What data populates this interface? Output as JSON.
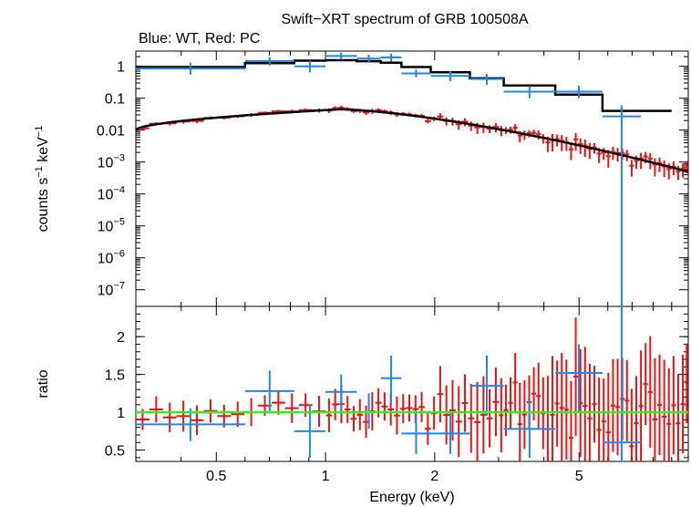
{
  "chart_data": {
    "type": "scatter",
    "title": "Swift−XRT spectrum of GRB 100508A",
    "subtitle": "Blue: WT, Red: PC",
    "xlabel": "Energy (keV)",
    "x_scale": "log",
    "xlim": [
      0.3,
      10
    ],
    "x_ticks": [
      {
        "value": 0.5,
        "label": "0.5"
      },
      {
        "value": 1,
        "label": "1"
      },
      {
        "value": 2,
        "label": "2"
      },
      {
        "value": 5,
        "label": "5"
      }
    ],
    "upper_panel": {
      "ylabel_parts": [
        "counts s",
        "−1",
        " keV",
        "−1"
      ],
      "y_scale": "log",
      "ylim": [
        3e-08,
        3
      ],
      "y_ticks": [
        {
          "value": 1,
          "base": "1",
          "exp": ""
        },
        {
          "value": 0.1,
          "base": "0.1",
          "exp": ""
        },
        {
          "value": 0.01,
          "base": "0.01",
          "exp": ""
        },
        {
          "value": 0.001,
          "base": "10",
          "exp": "−3"
        },
        {
          "value": 0.0001,
          "base": "10",
          "exp": "−4"
        },
        {
          "value": 1e-05,
          "base": "10",
          "exp": "−5"
        },
        {
          "value": 1e-06,
          "base": "10",
          "exp": "−6"
        },
        {
          "value": 1e-07,
          "base": "10",
          "exp": "−7"
        }
      ],
      "wt_data": [
        {
          "x0": 0.3,
          "x1": 0.6,
          "y": 0.85,
          "lo": 0.55,
          "hi": 1.3
        },
        {
          "x0": 0.6,
          "x1": 0.82,
          "y": 1.45,
          "lo": 1.05,
          "hi": 1.95
        },
        {
          "x0": 0.82,
          "x1": 1.0,
          "y": 1.0,
          "lo": 0.65,
          "hi": 1.5
        },
        {
          "x0": 1.0,
          "x1": 1.22,
          "y": 2.1,
          "lo": 1.6,
          "hi": 2.7
        },
        {
          "x0": 1.22,
          "x1": 1.42,
          "y": 1.75,
          "lo": 1.3,
          "hi": 2.3
        },
        {
          "x0": 1.42,
          "x1": 1.62,
          "y": 1.9,
          "lo": 1.4,
          "hi": 2.5
        },
        {
          "x0": 1.62,
          "x1": 1.95,
          "y": 0.6,
          "lo": 0.45,
          "hi": 0.8
        },
        {
          "x0": 1.95,
          "x1": 2.5,
          "y": 0.5,
          "lo": 0.34,
          "hi": 0.7
        },
        {
          "x0": 2.5,
          "x1": 3.1,
          "y": 0.4,
          "lo": 0.26,
          "hi": 0.58
        },
        {
          "x0": 3.1,
          "x1": 4.3,
          "y": 0.16,
          "lo": 0.1,
          "hi": 0.24
        },
        {
          "x0": 4.3,
          "x1": 5.8,
          "y": 0.16,
          "lo": 0.1,
          "hi": 0.25
        },
        {
          "x0": 5.8,
          "x1": 7.4,
          "y": 0.027,
          "lo": 3e-08,
          "hi": 0.06
        }
      ],
      "wt_model": [
        {
          "x0": 0.3,
          "x1": 0.6,
          "y": 0.95
        },
        {
          "x0": 0.6,
          "x1": 0.82,
          "y": 1.25
        },
        {
          "x0": 0.82,
          "x1": 1.0,
          "y": 1.5
        },
        {
          "x0": 1.0,
          "x1": 1.22,
          "y": 1.55
        },
        {
          "x0": 1.22,
          "x1": 1.42,
          "y": 1.45
        },
        {
          "x0": 1.42,
          "x1": 1.62,
          "y": 1.3
        },
        {
          "x0": 1.62,
          "x1": 1.95,
          "y": 0.95
        },
        {
          "x0": 1.95,
          "x1": 2.5,
          "y": 0.65
        },
        {
          "x0": 2.5,
          "x1": 3.1,
          "y": 0.42
        },
        {
          "x0": 3.1,
          "x1": 4.3,
          "y": 0.25
        },
        {
          "x0": 4.3,
          "x1": 5.8,
          "y": 0.13
        },
        {
          "x0": 5.8,
          "x1": 9.0,
          "y": 0.04
        }
      ]
    },
    "lower_panel": {
      "ylabel": "ratio",
      "y_scale": "linear",
      "ylim": [
        0.35,
        2.4
      ],
      "y_ticks": [
        {
          "value": 0.5,
          "label": "0.5"
        },
        {
          "value": 1,
          "label": "1"
        },
        {
          "value": 1.5,
          "label": "1.5"
        },
        {
          "value": 2,
          "label": "2"
        }
      ],
      "reference_line": 1,
      "wt_ratio": [
        {
          "x0": 0.3,
          "x1": 0.6,
          "y": 0.84,
          "lo": 0.62,
          "hi": 1.05
        },
        {
          "x0": 0.6,
          "x1": 0.82,
          "y": 1.28,
          "lo": 1.0,
          "hi": 1.55
        },
        {
          "x0": 0.82,
          "x1": 1.0,
          "y": 0.75,
          "lo": 0.4,
          "hi": 1.1
        },
        {
          "x0": 1.0,
          "x1": 1.22,
          "y": 1.27,
          "lo": 1.0,
          "hi": 1.5
        },
        {
          "x0": 1.22,
          "x1": 1.42,
          "y": 1.0,
          "lo": 0.78,
          "hi": 1.25
        },
        {
          "x0": 1.42,
          "x1": 1.62,
          "y": 1.45,
          "lo": 1.1,
          "hi": 1.75
        },
        {
          "x0": 1.62,
          "x1": 1.95,
          "y": 0.72,
          "lo": 0.45,
          "hi": 1.0
        },
        {
          "x0": 1.95,
          "x1": 2.5,
          "y": 0.72,
          "lo": 0.45,
          "hi": 1.0
        },
        {
          "x0": 2.5,
          "x1": 3.1,
          "y": 1.35,
          "lo": 0.95,
          "hi": 1.75
        },
        {
          "x0": 3.1,
          "x1": 4.3,
          "y": 0.78,
          "lo": 0.4,
          "hi": 1.15
        },
        {
          "x0": 4.3,
          "x1": 5.8,
          "y": 1.52,
          "lo": 1.0,
          "hi": 1.9
        },
        {
          "x0": 5.8,
          "x1": 7.4,
          "y": 0.6,
          "lo": 0.35,
          "hi": 2.4
        }
      ],
      "pc_ratio_summary": "approximately 170 PC bins scattered around 1 with error bars growing above 3 keV (ratio mostly within 0.5–2.4)"
    },
    "series": [
      {
        "name": "WT data",
        "color": "#1e88e5"
      },
      {
        "name": "PC data",
        "color": "#ee1111"
      },
      {
        "name": "model",
        "color": "#000000"
      },
      {
        "name": "ratio = 1",
        "color": "#33ee22"
      }
    ],
    "pc_model": {
      "description": "absorbed power law: rises from 0.01 at 0.3 keV to ~0.045 near 1.1 keV, then falls to ~5e-4 at 10 keV"
    }
  }
}
